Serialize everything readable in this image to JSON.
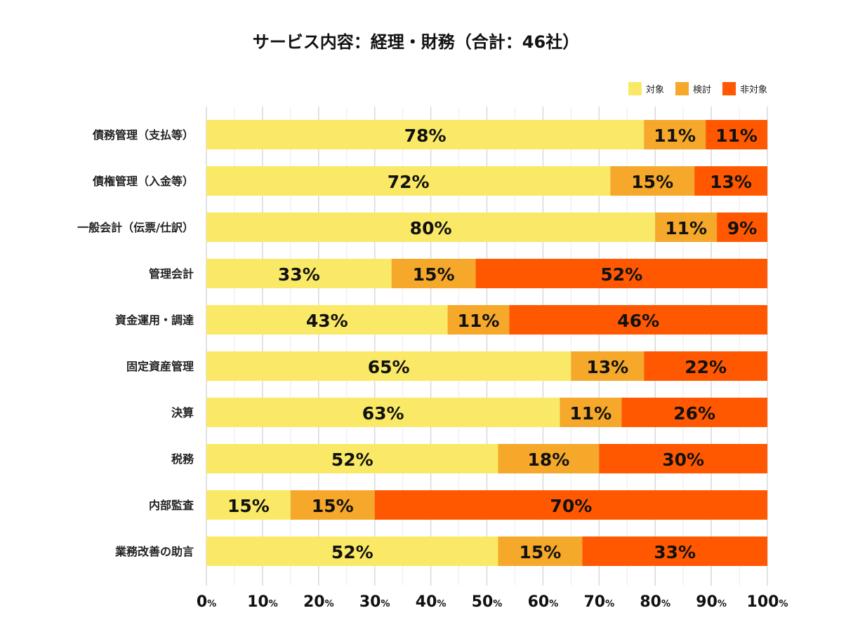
{
  "chart_data": {
    "type": "bar",
    "orientation": "horizontal",
    "stacked": true,
    "title": "サービス内容：経理・財務（合計：46社）",
    "categories": [
      "債務管理（支払等）",
      "債権管理（入金等）",
      "一般会計（伝票/仕訳）",
      "管理会計",
      "資金運用・調達",
      "固定資産管理",
      "決算",
      "税務",
      "内部監査",
      "業務改善の助言"
    ],
    "series": [
      {
        "name": "対象",
        "color": "#FAE966",
        "values": [
          78,
          72,
          80,
          33,
          43,
          65,
          63,
          52,
          15,
          52
        ]
      },
      {
        "name": "検討",
        "color": "#F5A82A",
        "values": [
          11,
          15,
          11,
          15,
          11,
          13,
          11,
          18,
          15,
          15
        ]
      },
      {
        "name": "非対象",
        "color": "#FF5800",
        "values": [
          11,
          13,
          9,
          52,
          46,
          22,
          26,
          30,
          70,
          33
        ]
      }
    ],
    "xlim": [
      0,
      100
    ],
    "xticks": [
      0,
      10,
      20,
      30,
      40,
      50,
      60,
      70,
      80,
      90,
      100
    ],
    "tick_suffix": "%",
    "value_suffix": "%",
    "grid": true,
    "legend_position": "top-right"
  }
}
